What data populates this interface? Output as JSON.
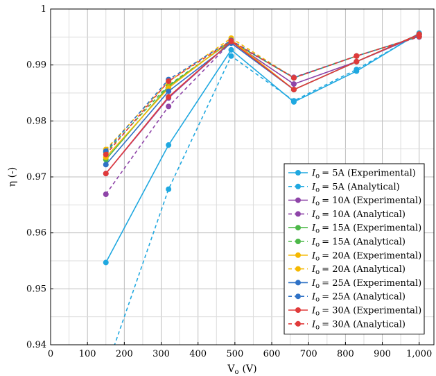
{
  "chart_data": {
    "type": "line",
    "xlabel": "V",
    "xlabel_sub": "o",
    "xlabel_unit": "(V)",
    "ylabel": "η (-)",
    "xlim": [
      0,
      1040
    ],
    "ylim": [
      0.94,
      1.0
    ],
    "x_ticks": [
      0,
      100,
      200,
      300,
      400,
      500,
      600,
      700,
      800,
      900,
      1000
    ],
    "x_tick_labels": [
      "0",
      "100",
      "200",
      "300",
      "400",
      "500",
      "600",
      "700",
      "800",
      "900",
      "1,000"
    ],
    "y_ticks": [
      0.94,
      0.95,
      0.96,
      0.97,
      0.98,
      0.99,
      1.0
    ],
    "y_tick_labels": [
      "0.94",
      "0.95",
      "0.96",
      "0.97",
      "0.98",
      "0.99",
      "1"
    ],
    "grid": true,
    "legend_position": "bottom-right",
    "series": [
      {
        "name": "= 5A (Experimental)",
        "current": "5A",
        "kind": "Experimental",
        "color": "#1fa8e0",
        "dashed": false,
        "x": [
          150,
          320,
          490,
          660,
          830,
          1000
        ],
        "y": [
          0.9547,
          0.9757,
          0.9927,
          0.9834,
          0.9889,
          0.9957
        ]
      },
      {
        "name": "= 5A (Analytical)",
        "current": "5A",
        "kind": "Analytical",
        "color": "#1fa8e0",
        "dashed": true,
        "x": [
          150,
          320,
          490,
          660,
          830,
          1000
        ],
        "y": [
          0.9355,
          0.9678,
          0.9916,
          0.9836,
          0.9892,
          0.9956
        ]
      },
      {
        "name": "= 10A (Experimental)",
        "current": "10A",
        "kind": "Experimental",
        "color": "#8e44a8",
        "dashed": false,
        "x": [
          150,
          320,
          490,
          660,
          830,
          1000
        ],
        "y": [
          0.9706,
          0.9841,
          0.9942,
          0.9866,
          0.9906,
          0.9953
        ]
      },
      {
        "name": "= 10A (Analytical)",
        "current": "10A",
        "kind": "Analytical",
        "color": "#8e44a8",
        "dashed": true,
        "x": [
          150,
          320,
          490,
          660,
          830,
          1000
        ],
        "y": [
          0.9669,
          0.9826,
          0.9941,
          0.9878,
          0.9916,
          0.995
        ]
      },
      {
        "name": "= 15A (Experimental)",
        "current": "15A",
        "kind": "Experimental",
        "color": "#4cb848",
        "dashed": false,
        "x": [
          150,
          320,
          490,
          660,
          830,
          1000
        ],
        "y": [
          0.9731,
          0.9862,
          0.9943,
          0.9856,
          0.9906,
          0.9955
        ]
      },
      {
        "name": "= 15A (Analytical)",
        "current": "15A",
        "kind": "Analytical",
        "color": "#4cb848",
        "dashed": true,
        "x": [
          150,
          320,
          490,
          660,
          830,
          1000
        ],
        "y": [
          0.9744,
          0.9864,
          0.9942,
          0.9877,
          0.9916,
          0.9951
        ]
      },
      {
        "name": "= 20A (Experimental)",
        "current": "20A",
        "kind": "Experimental",
        "color": "#f5b800",
        "dashed": false,
        "x": [
          150,
          320,
          490,
          660,
          830,
          1000
        ],
        "y": [
          0.9735,
          0.9859,
          0.9945,
          0.9856,
          0.9906,
          0.9955
        ]
      },
      {
        "name": "= 20A (Analytical)",
        "current": "20A",
        "kind": "Analytical",
        "color": "#f5b800",
        "dashed": true,
        "x": [
          150,
          320,
          490,
          660,
          830,
          1000
        ],
        "y": [
          0.9749,
          0.987,
          0.9948,
          0.9877,
          0.9916,
          0.9951
        ]
      },
      {
        "name": "= 25A (Experimental)",
        "current": "25A",
        "kind": "Experimental",
        "color": "#2f72c6",
        "dashed": false,
        "x": [
          150,
          320,
          490,
          660,
          830,
          1000
        ],
        "y": [
          0.9722,
          0.9853,
          0.9939,
          0.9856,
          0.9906,
          0.9955
        ]
      },
      {
        "name": "= 25A (Analytical)",
        "current": "25A",
        "kind": "Analytical",
        "color": "#2f72c6",
        "dashed": true,
        "x": [
          150,
          320,
          490,
          660,
          830,
          1000
        ],
        "y": [
          0.9746,
          0.9874,
          0.9944,
          0.9877,
          0.9916,
          0.9951
        ]
      },
      {
        "name": "= 30A (Experimental)",
        "current": "30A",
        "kind": "Experimental",
        "color": "#e03a3a",
        "dashed": false,
        "x": [
          150,
          320,
          490,
          660,
          830,
          1000
        ],
        "y": [
          0.9706,
          0.9843,
          0.9942,
          0.9856,
          0.9906,
          0.9955
        ]
      },
      {
        "name": "= 30A (Analytical)",
        "current": "30A",
        "kind": "Analytical",
        "color": "#e03a3a",
        "dashed": true,
        "x": [
          150,
          320,
          490,
          660,
          830,
          1000
        ],
        "y": [
          0.974,
          0.9871,
          0.9943,
          0.9877,
          0.9916,
          0.9951
        ]
      }
    ],
    "legend_symbol": "I",
    "legend_symbol_sub": "o"
  }
}
